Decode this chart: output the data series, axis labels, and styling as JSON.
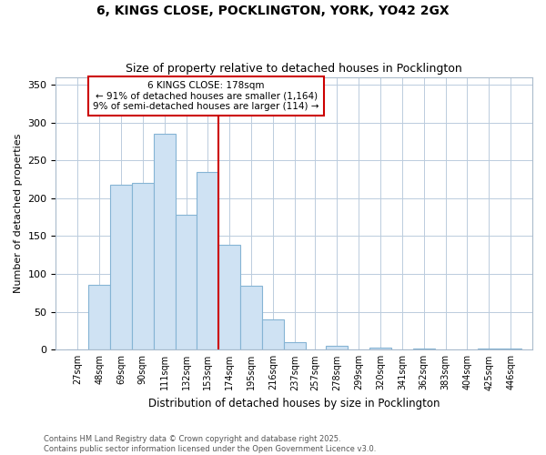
{
  "title": "6, KINGS CLOSE, POCKLINGTON, YORK, YO42 2GX",
  "subtitle": "Size of property relative to detached houses in Pocklington",
  "xlabel": "Distribution of detached houses by size in Pocklington",
  "ylabel": "Number of detached properties",
  "bin_edges": [
    27,
    48,
    69,
    90,
    111,
    132,
    153,
    174,
    195,
    216,
    237,
    257,
    278,
    299,
    320,
    341,
    362,
    383,
    404,
    425,
    446
  ],
  "values": [
    0,
    86,
    218,
    220,
    285,
    178,
    235,
    138,
    85,
    40,
    10,
    0,
    5,
    0,
    3,
    0,
    2,
    0,
    0,
    1,
    1
  ],
  "bar_color": "#cfe2f3",
  "bar_edge_color": "#85b4d4",
  "vline_x_bin": 7,
  "vline_color": "#cc0000",
  "annotation_text": "6 KINGS CLOSE: 178sqm\n← 91% of detached houses are smaller (1,164)\n9% of semi-detached houses are larger (114) →",
  "annotation_box_color": "#cc0000",
  "ylim": [
    0,
    360
  ],
  "yticks": [
    0,
    50,
    100,
    150,
    200,
    250,
    300,
    350
  ],
  "footer_text": "Contains HM Land Registry data © Crown copyright and database right 2025.\nContains public sector information licensed under the Open Government Licence v3.0.",
  "bg_color": "#ffffff",
  "plot_bg_color": "#ffffff",
  "grid_color": "#bbccdd"
}
